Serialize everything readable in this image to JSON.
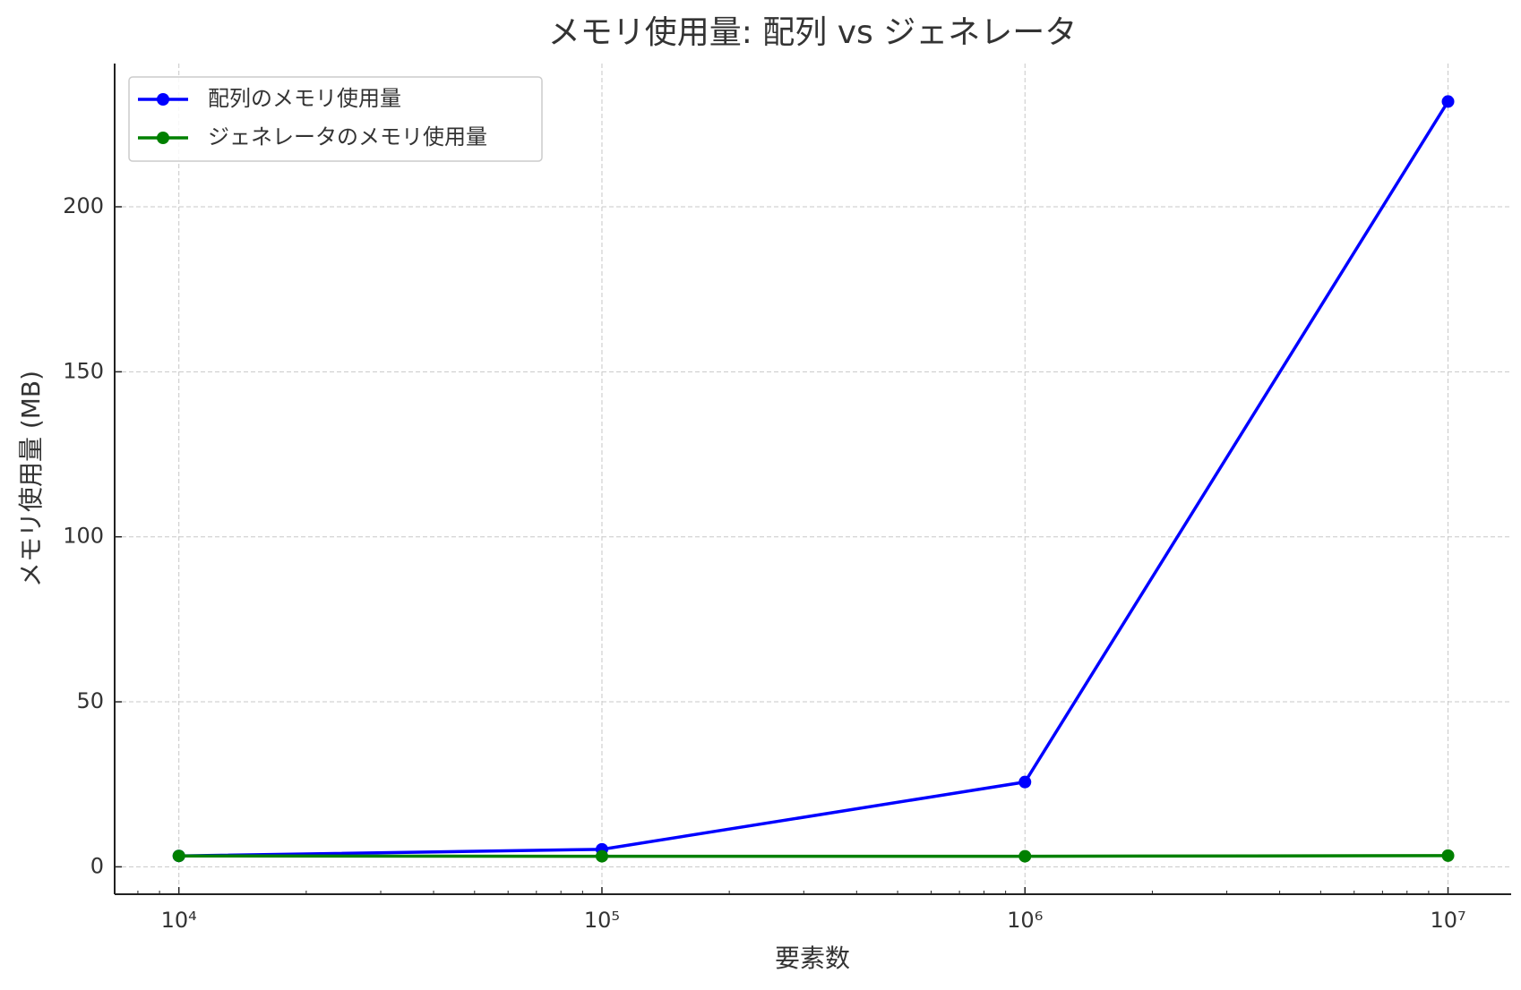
{
  "chart_data": {
    "type": "line",
    "title": "メモリ使用量: 配列 vs ジェネレータ",
    "x_label": "要素数",
    "y_label": "メモリ使用量 (MB)",
    "x": [
      10000,
      100000,
      1000000,
      10000000
    ],
    "series": [
      {
        "name": "配列のメモリ使用量",
        "color": "#0000ff",
        "values": [
          3.3,
          5.3,
          25.7,
          231.9
        ]
      },
      {
        "name": "ジェネレータのメモリ使用量",
        "color": "#008000",
        "values": [
          3.3,
          3.2,
          3.2,
          3.4
        ]
      }
    ],
    "xscale": "log",
    "xlim": [
      7050,
      14100000
    ],
    "xticks": [
      {
        "value": 10000,
        "label": "10⁴"
      },
      {
        "value": 100000,
        "label": "10⁵"
      },
      {
        "value": 1000000,
        "label": "10⁶"
      },
      {
        "value": 10000000,
        "label": "10⁷"
      }
    ],
    "ylim": [
      -8.3,
      243.4
    ],
    "yticks": [
      0,
      50,
      100,
      150,
      200
    ],
    "grid": true,
    "legend": "upper left"
  }
}
